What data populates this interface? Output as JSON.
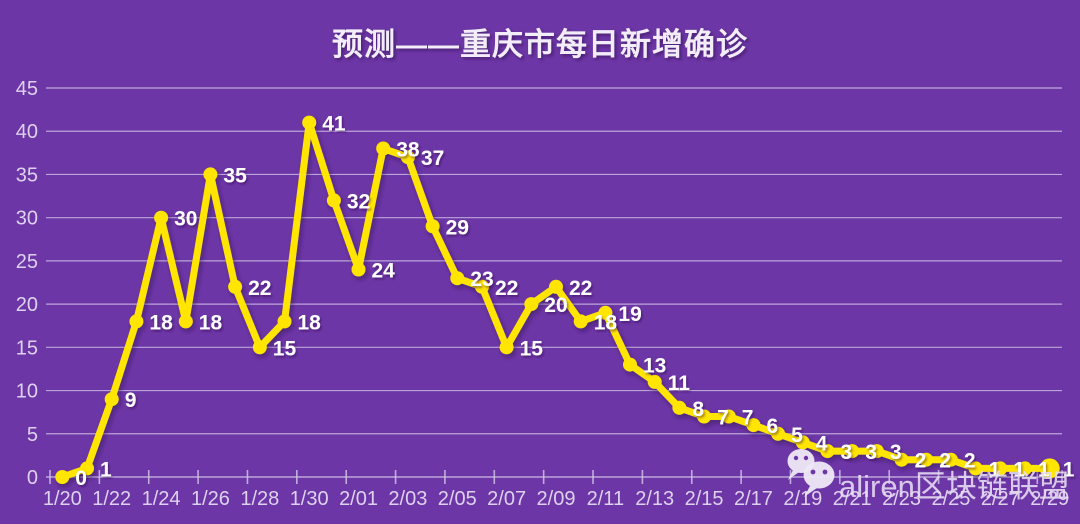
{
  "page": {
    "background": "#6d36a6"
  },
  "chart_data": {
    "type": "line",
    "title": "预测——重庆市每日新增确诊",
    "x": [
      "1/20",
      "1/21",
      "1/22",
      "1/23",
      "1/24",
      "1/25",
      "1/26",
      "1/27",
      "1/28",
      "1/29",
      "1/30",
      "1/31",
      "2/01",
      "2/02",
      "2/03",
      "2/04",
      "2/05",
      "2/06",
      "2/07",
      "2/08",
      "2/09",
      "2/10",
      "2/11",
      "2/12",
      "2/13",
      "2/14",
      "2/15",
      "2/16",
      "2/17",
      "2/18",
      "2/19",
      "2/20",
      "2/21",
      "2/22",
      "2/23",
      "2/24",
      "2/25",
      "2/26",
      "2/27",
      "2/28",
      "2/29"
    ],
    "values": [
      0,
      1,
      9,
      18,
      30,
      18,
      35,
      22,
      15,
      18,
      41,
      32,
      24,
      38,
      37,
      29,
      23,
      22,
      15,
      20,
      22,
      18,
      19,
      13,
      11,
      8,
      7,
      7,
      6,
      5,
      4,
      3,
      3,
      3,
      2,
      2,
      2,
      1,
      1,
      1,
      1
    ],
    "x_tick_labels": [
      "1/20",
      "1/22",
      "1/24",
      "1/26",
      "1/28",
      "1/30",
      "2/01",
      "2/03",
      "2/05",
      "2/07",
      "2/09",
      "2/11",
      "2/13",
      "2/15",
      "2/17",
      "2/19",
      "2/21",
      "2/23",
      "2/25",
      "2/27",
      "2/29"
    ],
    "y_ticks": [
      0,
      5,
      10,
      15,
      20,
      25,
      30,
      35,
      40,
      45
    ],
    "ylim": [
      0,
      45
    ],
    "grid": true,
    "legend": "none",
    "data_labels": true,
    "colors": {
      "title": "#f2edf9",
      "line": "#ffe500",
      "marker": "#ffe500",
      "data_label": "#ffffff",
      "axis_text": "#ddd2ee",
      "gridline": "#cfc2e6"
    }
  },
  "watermark": {
    "text": "aliren区块链联盟",
    "icons": [
      "wechat-icon",
      "wechat-icon"
    ],
    "text_color": "#e8def4",
    "icon_color": "#efe9f8"
  }
}
